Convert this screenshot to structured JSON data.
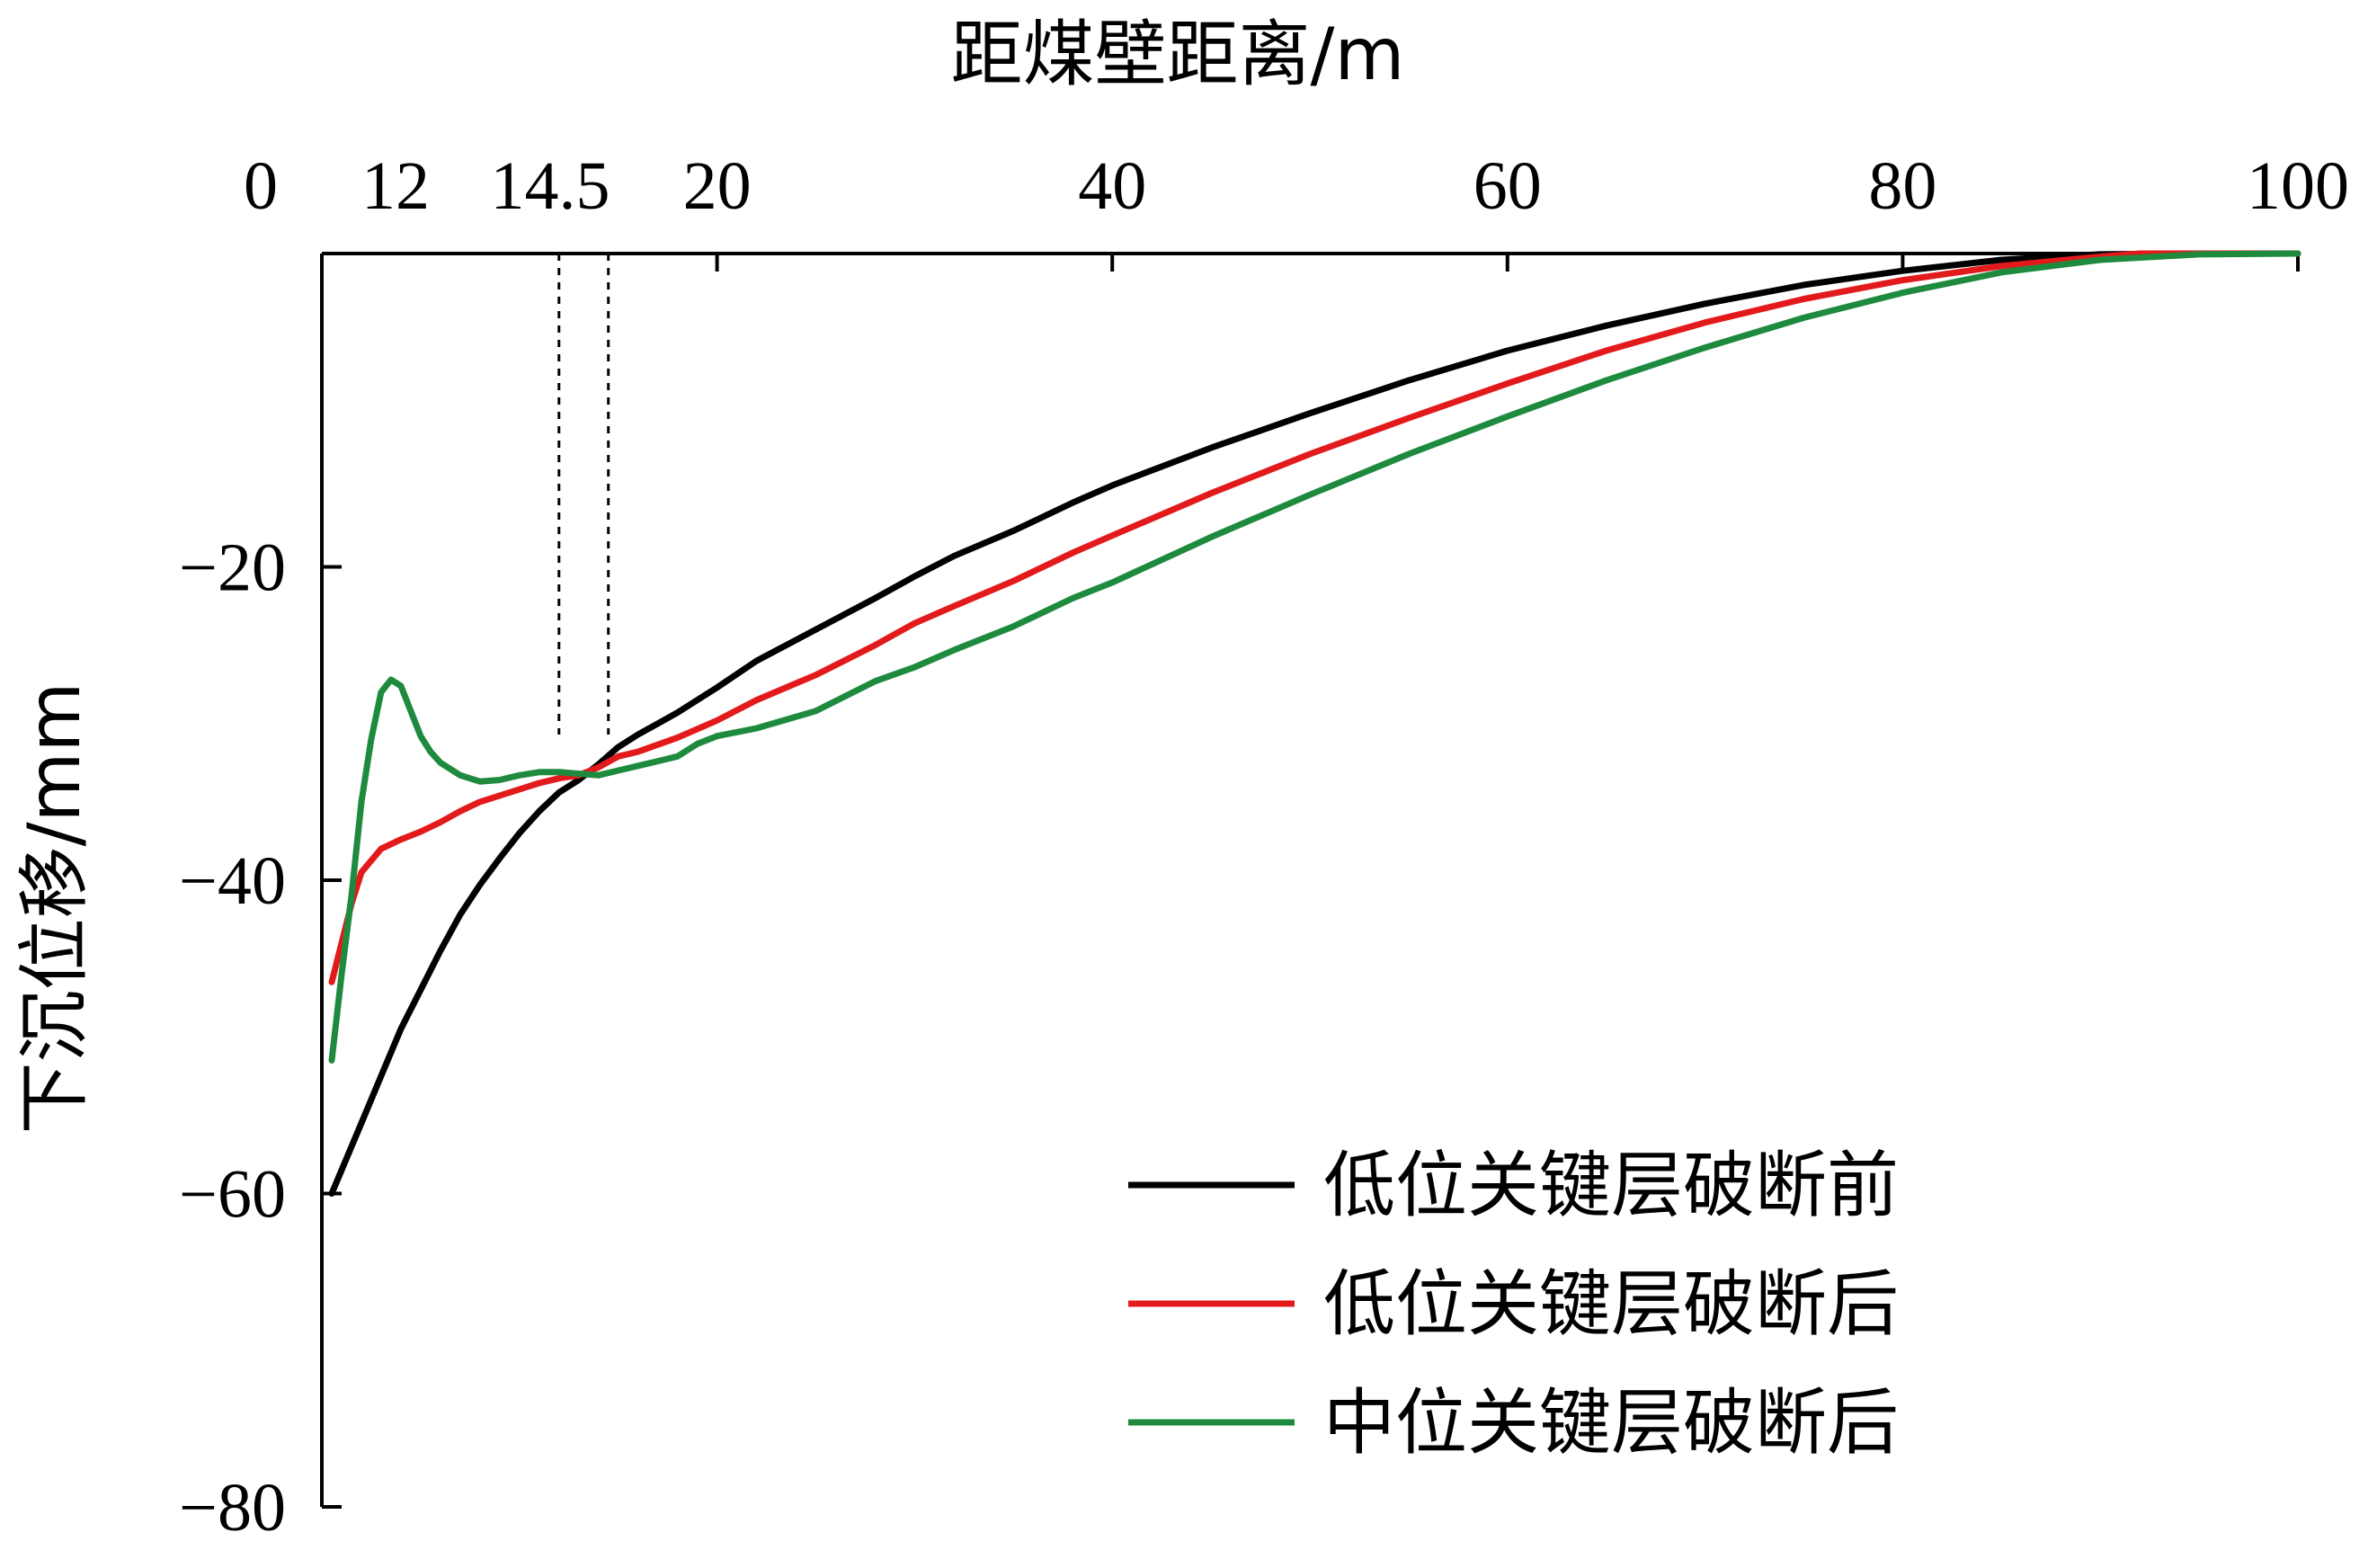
{
  "chart_data": {
    "type": "line",
    "xlabel": "距煤壁距离/m",
    "ylabel": "下沉位移/mm",
    "xlim": [
      0,
      100
    ],
    "ylim": [
      -80,
      0
    ],
    "x_ticks": [
      {
        "value": 0,
        "label": "0"
      },
      {
        "value": 20,
        "label": "20"
      },
      {
        "value": 40,
        "label": "40"
      },
      {
        "value": 60,
        "label": "60"
      },
      {
        "value": 80,
        "label": "80"
      },
      {
        "value": 100,
        "label": "100"
      }
    ],
    "x_annotations": [
      {
        "value": 12,
        "label": "12"
      },
      {
        "value": 14.5,
        "label": "14.5"
      }
    ],
    "y_ticks": [
      {
        "value": -20,
        "label": "−20"
      },
      {
        "value": -40,
        "label": "−40"
      },
      {
        "value": -60,
        "label": "−60"
      },
      {
        "value": -80,
        "label": "−80"
      }
    ],
    "x_axis_position": "top",
    "grid": false,
    "legend_position": "bottom-right",
    "series": [
      {
        "name": "低位关键层破断前",
        "color": "#000000",
        "x": [
          0.5,
          1,
          2,
          3,
          4,
          5,
          6,
          7,
          8,
          9,
          10,
          11,
          12,
          13,
          14,
          15,
          16,
          17,
          18,
          20,
          22,
          25,
          28,
          30,
          32,
          35,
          38,
          40,
          45,
          50,
          55,
          60,
          65,
          70,
          75,
          80,
          85,
          90,
          95,
          100
        ],
        "y": [
          -60,
          -58.5,
          -55.5,
          -52.5,
          -49.5,
          -47,
          -44.5,
          -42.2,
          -40.3,
          -38.6,
          -37,
          -35.6,
          -34.4,
          -33.6,
          -32.6,
          -31.5,
          -30.7,
          -30,
          -29.3,
          -27.7,
          -26,
          -24,
          -22,
          -20.6,
          -19.3,
          -17.7,
          -15.9,
          -14.8,
          -12.4,
          -10.2,
          -8.1,
          -6.2,
          -4.6,
          -3.2,
          -2,
          -1.1,
          -0.4,
          -0.05,
          0,
          0
        ]
      },
      {
        "name": "低位关键层破断后",
        "color": "#e31a1c",
        "x": [
          0.5,
          1,
          1.5,
          2,
          3,
          4,
          5,
          6,
          7,
          8,
          9,
          10,
          11,
          12,
          13,
          14,
          15,
          16,
          18,
          20,
          22,
          25,
          28,
          30,
          32,
          35,
          38,
          40,
          45,
          50,
          55,
          60,
          65,
          70,
          75,
          80,
          85,
          90,
          92,
          95,
          100
        ],
        "y": [
          -46.5,
          -44,
          -41.5,
          -39.5,
          -38,
          -37.4,
          -36.9,
          -36.3,
          -35.6,
          -35,
          -34.6,
          -34.2,
          -33.8,
          -33.5,
          -33.3,
          -32.8,
          -32.1,
          -31.8,
          -30.9,
          -29.8,
          -28.5,
          -26.9,
          -25,
          -23.6,
          -22.5,
          -20.9,
          -19.1,
          -18,
          -15.3,
          -12.8,
          -10.5,
          -8.3,
          -6.2,
          -4.4,
          -2.9,
          -1.7,
          -0.8,
          -0.2,
          0,
          0,
          0
        ]
      },
      {
        "name": "中位关键层破断后",
        "color": "#1e8a3e",
        "x": [
          0.5,
          1,
          1.5,
          2,
          2.5,
          3,
          3.5,
          4,
          4.5,
          5,
          5.5,
          6,
          7,
          8,
          9,
          10,
          11,
          12,
          13,
          14,
          15,
          16,
          17,
          18,
          19,
          20,
          22,
          25,
          28,
          30,
          32,
          35,
          38,
          40,
          45,
          50,
          55,
          60,
          65,
          70,
          75,
          80,
          85,
          90,
          95,
          100
        ],
        "y": [
          -51.5,
          -46,
          -41,
          -35,
          -31,
          -28,
          -27.2,
          -27.6,
          -29.2,
          -30.8,
          -31.8,
          -32.5,
          -33.3,
          -33.7,
          -33.6,
          -33.3,
          -33.1,
          -33.1,
          -33.2,
          -33.3,
          -33,
          -32.7,
          -32.4,
          -32.1,
          -31.3,
          -30.8,
          -30.3,
          -29.2,
          -27.3,
          -26.4,
          -25.3,
          -23.8,
          -22,
          -21,
          -18.1,
          -15.4,
          -12.8,
          -10.4,
          -8.1,
          -6,
          -4.1,
          -2.5,
          -1.2,
          -0.4,
          -0.05,
          0
        ]
      }
    ]
  }
}
